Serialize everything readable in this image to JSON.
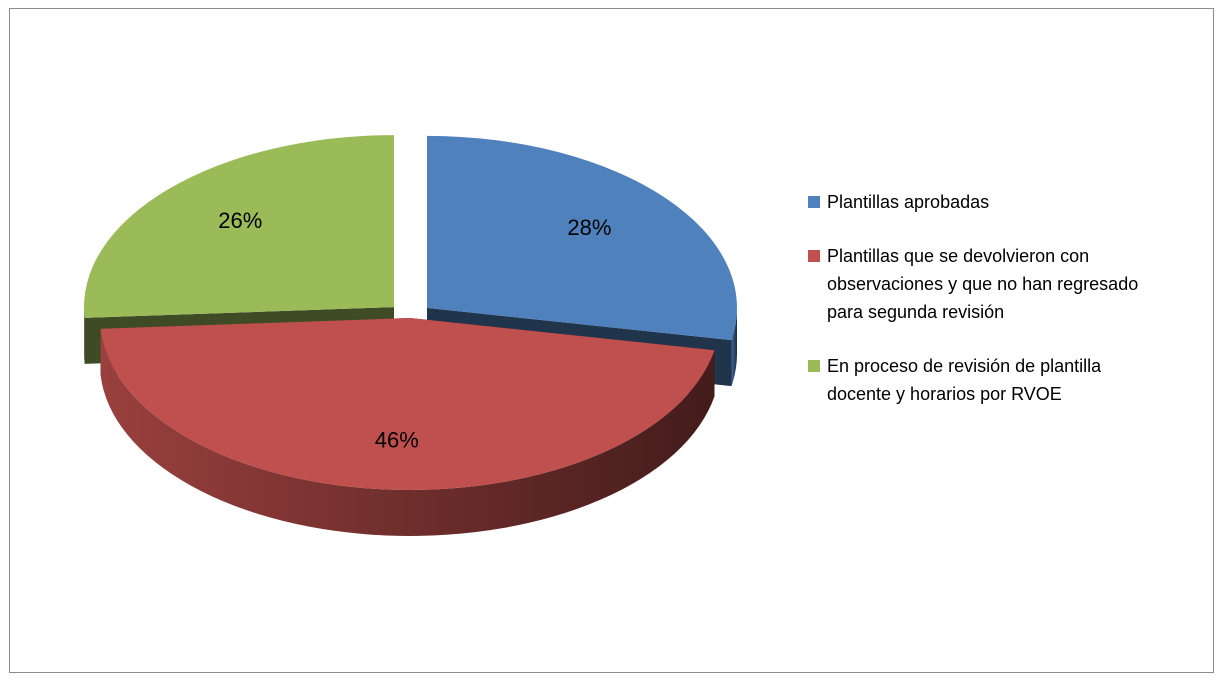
{
  "chart_data": {
    "type": "pie",
    "categories": [
      "Plantillas aprobadas",
      "Plantillas que se devolvieron con observaciones y que no han regresado para segunda revisión",
      "En proceso de revisión de plantilla docente y horarios por RVOE"
    ],
    "values": [
      28,
      46,
      26
    ],
    "value_labels": [
      "28%",
      "46%",
      "26%"
    ],
    "colors": [
      "#4f81bd",
      "#c0504d",
      "#9bbb59"
    ],
    "legend": "right"
  }
}
